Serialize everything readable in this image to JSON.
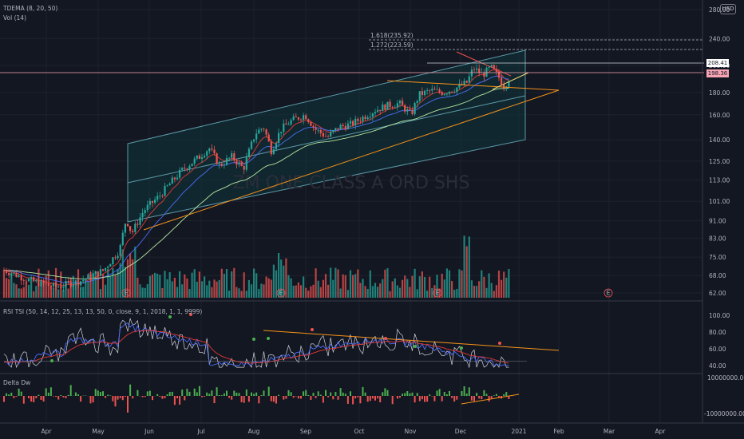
{
  "legend": {
    "tdema": "TDEMA (8, 20, 50)",
    "vol": "Vol (14)",
    "rsi": "RSI TSI (50, 14, 12, 25, 13, 13, 50, 0, close, 9, 1, 2018, 1, 1, 9999)",
    "delta": "Delta Dw"
  },
  "currency": "USD",
  "watermark": "ZM ONE CLASS A ORD SHS",
  "price_tags": {
    "upper": "208.41",
    "upper_color": "#ffffff",
    "lower": "198.36",
    "lower_color": "#f7a4b4"
  },
  "fib_labels": [
    "1.618(235.92)",
    "1.272(223.59)"
  ],
  "earnings_marker": "E",
  "colors": {
    "up": "#26a69a",
    "down": "#ef5350",
    "bg": "#131722",
    "channel": "#5b9aa8",
    "trend": "#f7931a",
    "rsi_line": "#4a6cf7",
    "tsi_line": "#d1d4dc",
    "rsi_signal": "#e53935"
  },
  "chart_data": {
    "type": "candlestick",
    "x_axis": [
      "Apr",
      "May",
      "Jun",
      "Jul",
      "Aug",
      "Sep",
      "Oct",
      "Nov",
      "Dec",
      "2021",
      "Feb",
      "Mar",
      "Apr"
    ],
    "price_axis": [
      "280.00",
      "240.00",
      "208.00",
      "180.00",
      "160.00",
      "140.00",
      "125.00",
      "113.00",
      "101.00",
      "91.00",
      "83.00",
      "75.00",
      "68.00",
      "62.00"
    ],
    "rsi_axis": [
      "100.00",
      "80.00",
      "60.00",
      "40.00"
    ],
    "delta_axis": [
      "10000000.00",
      "-10000000.00"
    ],
    "price_scale": "log",
    "series_summary": {
      "start_price": 62,
      "late_may_spike": 93,
      "aug_high": 160,
      "sep_high": 168,
      "dec_high": 212,
      "last_close": 198.36
    },
    "fib_levels": [
      {
        "label": "1.618",
        "value": 235.92
      },
      {
        "label": "1.272",
        "value": 223.59
      }
    ]
  }
}
